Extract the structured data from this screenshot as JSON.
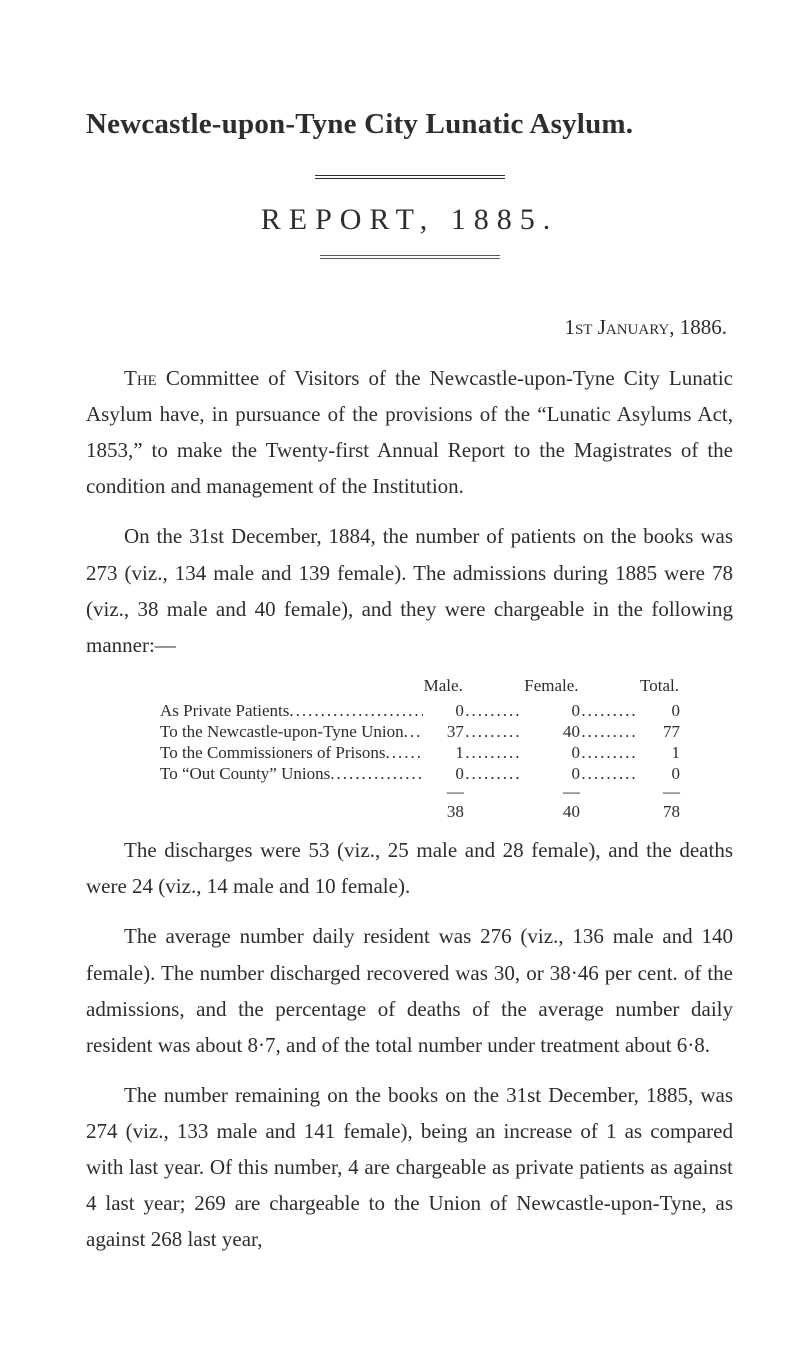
{
  "title_line": "Newcastle-upon-Tyne City Lunatic Asylum.",
  "report_line": "REPORT, 1885.",
  "date_line": "1st January, 1886.",
  "paras": {
    "p1": "The Committee of Visitors of the Newcastle-upon-Tyne City Lunatic Asylum have, in pursuance of the provisions of the “Lunatic Asylums Act, 1853,” to make the Twenty-first Annual Report to the Magistrates of the condition and management of the Institution.",
    "p2": "On the 31st December, 1884, the number of patients on the books was 273 (viz., 134 male and 139 female). The admissions during 1885 were 78 (viz., 38 male and 40 female), and they were chargeable in the following manner:—",
    "p3": "The discharges were 53 (viz., 25 male and 28 female), and the deaths were 24 (viz., 14 male and 10 female).",
    "p4": "The average number daily resident was 276 (viz., 136 male and 140 female). The number discharged recovered was 30, or 38·46 per cent. of the admissions, and the percentage of deaths of the average number daily resident was about 8·7, and of the total number under treatment about 6·8.",
    "p5": "The number remaining on the books on the 31st December, 1885, was 274 (viz., 133 male and 141 female), being an increase of 1 as compared with last year. Of this number, 4 are charge­able as private patients as against 4 last year; 269 are chargeable to the Union of Newcastle-upon-Tyne, as against 268 last year,"
  },
  "table": {
    "headers": {
      "c1": "Male.",
      "c2": "Female.",
      "c3": "Total."
    },
    "rows": [
      {
        "label": "As Private Patients",
        "male": "0",
        "female": "0",
        "total": "0"
      },
      {
        "label": "To the Newcastle-upon-Tyne Union",
        "male": "37",
        "female": "40",
        "total": "77"
      },
      {
        "label": "To the Commissioners of Prisons",
        "male": "1",
        "female": "0",
        "total": "1"
      },
      {
        "label": "To “Out County” Unions",
        "male": "0",
        "female": "0",
        "total": "0"
      }
    ],
    "dash": "—",
    "totals": {
      "male": "38",
      "female": "40",
      "total": "78"
    }
  },
  "dots": "........."
}
